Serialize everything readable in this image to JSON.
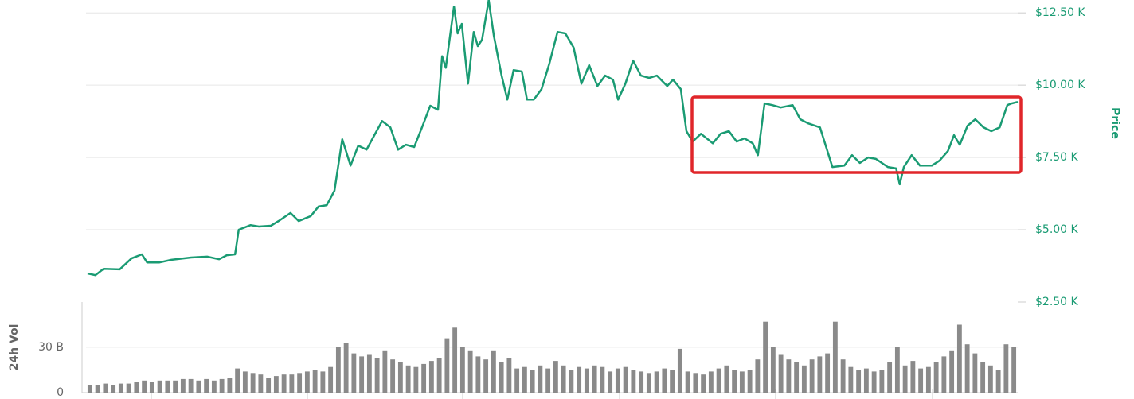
{
  "chart_data": [
    {
      "type": "line",
      "ylabel": "Price",
      "color": "#1a9b73",
      "xlim": [
        0,
        180
      ],
      "ylim": [
        2.5,
        13
      ],
      "yticks": [
        {
          "value": 2.5,
          "label": "$2.50 K"
        },
        {
          "value": 5,
          "label": "$5.00 K"
        },
        {
          "value": 7.5,
          "label": "$7.50 K"
        },
        {
          "value": 10,
          "label": "$10.00 K"
        },
        {
          "value": 12.5,
          "label": "$12.50 K"
        }
      ],
      "grid": true,
      "x": [
        0.3,
        1.8,
        3.4,
        6.5,
        8.8,
        10.8,
        11.8,
        14.2,
        16.5,
        20.3,
        23.4,
        25.7,
        27.2,
        28.8,
        29.5,
        31.8,
        33.4,
        35.7,
        37.2,
        39.5,
        41.1,
        43.4,
        44.9,
        46.5,
        48.0,
        49.5,
        51.1,
        52.6,
        54.2,
        55.7,
        57.2,
        58.8,
        60.3,
        61.8,
        63.4,
        64.9,
        66.5,
        68.0,
        68.8,
        69.5,
        71.1,
        71.8,
        72.6,
        73.8,
        74.9,
        75.7,
        76.5,
        77.8,
        78.8,
        80.3,
        81.4,
        82.6,
        84.2,
        85.2,
        86.5,
        88.0,
        89.5,
        91.1,
        92.6,
        94.2,
        95.7,
        97.2,
        98.8,
        100.3,
        101.8,
        102.8,
        104.2,
        105.7,
        107.2,
        108.8,
        110.3,
        112.3,
        113.4,
        114.9,
        116.0,
        117.2,
        118.8,
        121.1,
        122.6,
        124.2,
        125.7,
        127.2,
        128.8,
        129.8,
        131.1,
        132.6,
        134.2,
        136.5,
        138.0,
        139.5,
        141.8,
        144.2,
        146.5,
        148.0,
        149.5,
        151.1,
        152.6,
        154.9,
        156.5,
        157.2,
        158.0,
        159.5,
        161.1,
        163.4,
        164.9,
        166.5,
        167.7,
        168.8,
        170.3,
        171.8,
        173.4,
        174.9,
        176.5,
        178.0,
        178.8,
        180.0
      ],
      "values": [
        3.49,
        3.43,
        3.65,
        3.63,
        4.01,
        4.15,
        3.87,
        3.87,
        3.96,
        4.04,
        4.07,
        3.98,
        4.12,
        4.15,
        5.0,
        5.16,
        5.11,
        5.14,
        5.3,
        5.58,
        5.3,
        5.47,
        5.8,
        5.85,
        6.35,
        8.13,
        7.22,
        7.91,
        7.77,
        8.27,
        8.76,
        8.54,
        7.77,
        7.94,
        7.86,
        8.54,
        9.29,
        9.15,
        11.0,
        10.6,
        12.72,
        11.79,
        12.12,
        10.05,
        11.84,
        11.35,
        11.57,
        12.94,
        11.7,
        10.33,
        9.5,
        10.52,
        10.47,
        9.5,
        9.5,
        9.86,
        10.74,
        11.84,
        11.79,
        11.3,
        10.05,
        10.69,
        9.97,
        10.33,
        10.19,
        9.5,
        10.05,
        10.85,
        10.33,
        10.25,
        10.33,
        9.97,
        10.19,
        9.86,
        8.41,
        8.05,
        8.32,
        7.99,
        8.32,
        8.41,
        8.05,
        8.16,
        7.99,
        7.58,
        9.37,
        9.31,
        9.23,
        9.31,
        8.82,
        8.68,
        8.54,
        7.17,
        7.22,
        7.58,
        7.31,
        7.5,
        7.45,
        7.17,
        7.12,
        6.57,
        7.17,
        7.58,
        7.22,
        7.22,
        7.39,
        7.72,
        8.27,
        7.94,
        8.6,
        8.82,
        8.54,
        8.41,
        8.54,
        9.31,
        9.37,
        9.42
      ]
    },
    {
      "type": "bar",
      "ylabel": "24h Vol",
      "color": "#8a8a8a",
      "ylim": [
        0,
        60
      ],
      "yticks": [
        0,
        {
          "value": 30,
          "label": "30 B"
        }
      ],
      "values": [
        5,
        5,
        6,
        5,
        6,
        6,
        7,
        8,
        7,
        8,
        8,
        8,
        9,
        9,
        8,
        9,
        8,
        9,
        10,
        16,
        14,
        13,
        12,
        10,
        11,
        12,
        12,
        13,
        14,
        15,
        14,
        17,
        30,
        33,
        26,
        24,
        25,
        23,
        28,
        22,
        20,
        18,
        17,
        19,
        21,
        23,
        36,
        43,
        30,
        28,
        24,
        22,
        28,
        20,
        23,
        16,
        17,
        15,
        18,
        16,
        21,
        18,
        15,
        17,
        16,
        18,
        17,
        14,
        16,
        17,
        15,
        14,
        13,
        14,
        16,
        15,
        29,
        14,
        13,
        12,
        14,
        16,
        18,
        15,
        14,
        15,
        22,
        47,
        30,
        25,
        22,
        20,
        18,
        22,
        24,
        26,
        47,
        22,
        17,
        15,
        16,
        14,
        15,
        20,
        30,
        18,
        21,
        16,
        17,
        20,
        24,
        28,
        45,
        32,
        26,
        20,
        18,
        15,
        32,
        30
      ]
    }
  ]
}
